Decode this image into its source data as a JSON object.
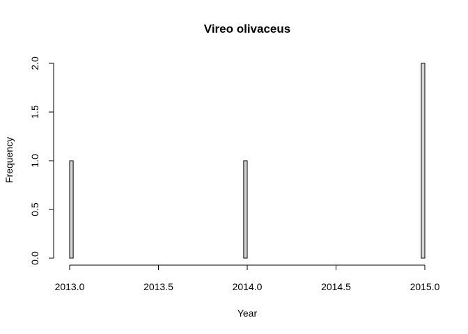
{
  "chart_data": {
    "type": "bar",
    "title": "Vireo olivaceus",
    "xlabel": "Year",
    "ylabel": "Frequency",
    "xlim": [
      2013.0,
      2015.0
    ],
    "ylim": [
      0,
      2
    ],
    "xticks": [
      2013.0,
      2013.5,
      2014.0,
      2014.5,
      2015.0
    ],
    "xtick_labels": [
      "2013.0",
      "2013.5",
      "2014.0",
      "2014.5",
      "2015.0"
    ],
    "yticks": [
      0,
      0.5,
      1,
      1.5,
      2
    ],
    "ytick_labels": [
      "0.0",
      "0.5",
      "1.0",
      "1.5",
      "2.0"
    ],
    "bin_width": 0.02,
    "bins": [
      {
        "x0": 2013.0,
        "x1": 2013.02,
        "value": 1
      },
      {
        "x0": 2013.98,
        "x1": 2014.0,
        "value": 1
      },
      {
        "x0": 2014.98,
        "x1": 2015.0,
        "value": 2
      }
    ],
    "bar_color": "#d3d3d3",
    "grid": false,
    "legend": "none"
  }
}
